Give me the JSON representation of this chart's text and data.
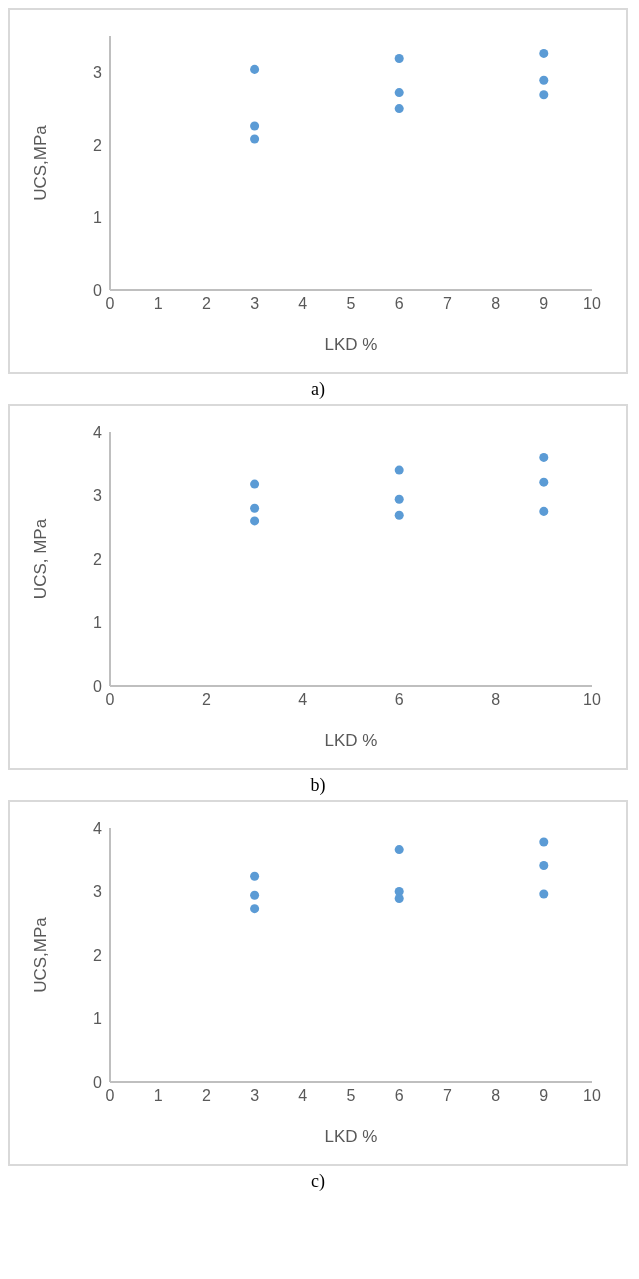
{
  "chart_data": [
    {
      "type": "scatter",
      "xlabel": "LKD %",
      "ylabel": "UCS,MPa",
      "annotations": [
        "a)"
      ],
      "marker": "circle",
      "grid": false,
      "xlim": [
        0,
        10
      ],
      "xticks": [
        0,
        1,
        2,
        3,
        4,
        5,
        6,
        7,
        8,
        9,
        10
      ],
      "ylim": [
        0,
        3.5
      ],
      "yticks": [
        0,
        1,
        2,
        3
      ],
      "x": [
        3,
        3,
        3,
        6,
        6,
        6,
        9,
        9,
        9
      ],
      "series": [
        {
          "color": "#5b9bd5",
          "values": [
            3.04,
            2.26,
            2.08,
            3.19,
            2.72,
            2.5,
            3.26,
            2.89,
            2.69
          ]
        }
      ]
    },
    {
      "type": "scatter",
      "xlabel": "LKD %",
      "ylabel": "UCS, MPa",
      "annotations": [
        "b)"
      ],
      "marker": "circle",
      "grid": false,
      "xlim": [
        0,
        10
      ],
      "xticks": [
        0,
        2,
        4,
        6,
        8,
        10
      ],
      "ylim": [
        0,
        4
      ],
      "yticks": [
        0,
        1,
        2,
        3,
        4
      ],
      "x": [
        3,
        3,
        3,
        6,
        6,
        6,
        9,
        9,
        9
      ],
      "series": [
        {
          "color": "#5b9bd5",
          "values": [
            3.18,
            2.8,
            2.6,
            3.4,
            2.94,
            2.69,
            3.6,
            3.21,
            2.75
          ]
        }
      ]
    },
    {
      "type": "scatter",
      "xlabel": "LKD %",
      "ylabel": "UCS,MPa",
      "annotations": [
        "c)"
      ],
      "marker": "circle",
      "grid": false,
      "xlim": [
        0,
        10
      ],
      "xticks": [
        0,
        1,
        2,
        3,
        4,
        5,
        6,
        7,
        8,
        9,
        10
      ],
      "ylim": [
        0,
        4
      ],
      "yticks": [
        0,
        1,
        2,
        3,
        4
      ],
      "x": [
        3,
        3,
        3,
        6,
        6,
        6,
        9,
        9,
        9
      ],
      "series": [
        {
          "color": "#5b9bd5",
          "values": [
            3.24,
            2.94,
            2.73,
            3.66,
            3.0,
            2.89,
            3.78,
            3.41,
            2.96
          ]
        }
      ]
    }
  ]
}
